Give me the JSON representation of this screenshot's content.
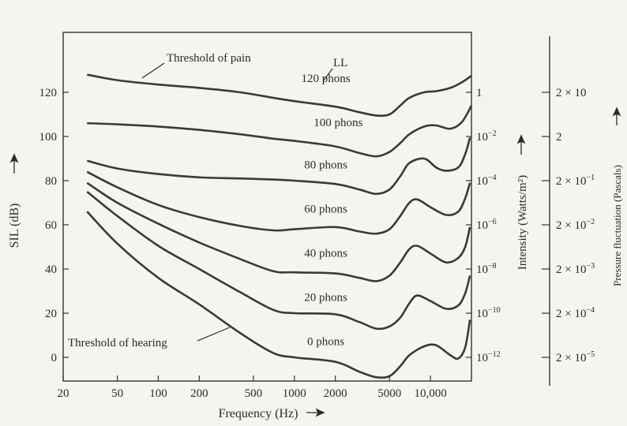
{
  "chart_data": {
    "type": "line",
    "x_scale": "log",
    "xlim": [
      20,
      20000
    ],
    "ylim": [
      -10,
      140
    ],
    "grid": false,
    "xlabel": "Frequency (Hz)",
    "ylabel": "SIL (dB)",
    "x_ticks": [
      {
        "value": 20,
        "label": "20"
      },
      {
        "value": 50,
        "label": "50"
      },
      {
        "value": 100,
        "label": "100"
      },
      {
        "value": 200,
        "label": "200"
      },
      {
        "value": 500,
        "label": "500"
      },
      {
        "value": 1000,
        "label": "1000"
      },
      {
        "value": 2000,
        "label": "2000"
      },
      {
        "value": 5000,
        "label": "5000"
      },
      {
        "value": 10000,
        "label": "10,000"
      }
    ],
    "y_ticks": [
      {
        "value": 0,
        "label": "0"
      },
      {
        "value": 20,
        "label": "20"
      },
      {
        "value": 40,
        "label": "40"
      },
      {
        "value": 60,
        "label": "60"
      },
      {
        "value": 80,
        "label": "80"
      },
      {
        "value": 100,
        "label": "100"
      },
      {
        "value": 120,
        "label": "120"
      }
    ],
    "intensity_axis": {
      "label": "Intensity (Watts/m²)",
      "ticks": [
        {
          "value": 120,
          "base": "1",
          "exp": ""
        },
        {
          "value": 100,
          "base": "10",
          "exp": "−2"
        },
        {
          "value": 80,
          "base": "10",
          "exp": "−4"
        },
        {
          "value": 60,
          "base": "10",
          "exp": "−6"
        },
        {
          "value": 40,
          "base": "10",
          "exp": "−8"
        },
        {
          "value": 20,
          "base": "10",
          "exp": "−10"
        },
        {
          "value": 0,
          "base": "10",
          "exp": "−12"
        }
      ]
    },
    "pressure_axis": {
      "label": "Pressure fluctuation (Pascals)",
      "ticks": [
        {
          "value": 120,
          "base": "2 × 10",
          "exp": ""
        },
        {
          "value": 100,
          "base": "2",
          "exp": ""
        },
        {
          "value": 80,
          "base": "2 × 10",
          "exp": "−1"
        },
        {
          "value": 60,
          "base": "2 × 10",
          "exp": "−2"
        },
        {
          "value": 40,
          "base": "2 × 10",
          "exp": "−3"
        },
        {
          "value": 20,
          "base": "2 × 10",
          "exp": "−4"
        },
        {
          "value": 0,
          "base": "2 × 10",
          "exp": "−5"
        }
      ]
    },
    "series": [
      {
        "name": "120 phons",
        "points": [
          [
            30,
            128
          ],
          [
            50,
            125.5
          ],
          [
            100,
            123.5
          ],
          [
            200,
            122
          ],
          [
            400,
            120
          ],
          [
            700,
            117.5
          ],
          [
            1000,
            116
          ],
          [
            2000,
            113.5
          ],
          [
            3000,
            111
          ],
          [
            4000,
            109.5
          ],
          [
            5000,
            110
          ],
          [
            6000,
            114
          ],
          [
            7000,
            117.5
          ],
          [
            9000,
            120
          ],
          [
            11000,
            120.5
          ],
          [
            14000,
            122
          ],
          [
            17000,
            124.5
          ],
          [
            20000,
            127.5
          ]
        ]
      },
      {
        "name": "100 phons",
        "points": [
          [
            30,
            106
          ],
          [
            50,
            105.5
          ],
          [
            100,
            104.5
          ],
          [
            200,
            103
          ],
          [
            400,
            101
          ],
          [
            700,
            99
          ],
          [
            1000,
            98
          ],
          [
            2000,
            95.5
          ],
          [
            3000,
            92.5
          ],
          [
            4000,
            91
          ],
          [
            5000,
            93
          ],
          [
            6000,
            97
          ],
          [
            7000,
            101
          ],
          [
            9000,
            104.5
          ],
          [
            11000,
            105
          ],
          [
            14000,
            103.5
          ],
          [
            17000,
            106.5
          ],
          [
            20000,
            114
          ]
        ]
      },
      {
        "name": "80 phons",
        "points": [
          [
            30,
            89
          ],
          [
            50,
            85.5
          ],
          [
            100,
            83
          ],
          [
            200,
            81.5
          ],
          [
            400,
            81
          ],
          [
            700,
            80.5
          ],
          [
            1000,
            80
          ],
          [
            2000,
            78.5
          ],
          [
            3000,
            76
          ],
          [
            4000,
            74
          ],
          [
            5000,
            76
          ],
          [
            6000,
            82
          ],
          [
            7000,
            88
          ],
          [
            9000,
            90
          ],
          [
            11000,
            86
          ],
          [
            13000,
            84.5
          ],
          [
            16000,
            86
          ],
          [
            18000,
            92
          ],
          [
            19500,
            99.5
          ]
        ]
      },
      {
        "name": "60 phons",
        "points": [
          [
            30,
            84
          ],
          [
            50,
            77
          ],
          [
            100,
            69
          ],
          [
            200,
            63.5
          ],
          [
            400,
            59.5
          ],
          [
            700,
            57.5
          ],
          [
            1000,
            58
          ],
          [
            2000,
            59
          ],
          [
            3000,
            57
          ],
          [
            4000,
            56
          ],
          [
            5000,
            58
          ],
          [
            6000,
            64
          ],
          [
            7000,
            70
          ],
          [
            8000,
            71.5
          ],
          [
            10000,
            68
          ],
          [
            13000,
            64.5
          ],
          [
            16000,
            66
          ],
          [
            18000,
            72
          ],
          [
            19500,
            79
          ]
        ]
      },
      {
        "name": "40 phons",
        "points": [
          [
            30,
            79
          ],
          [
            50,
            70
          ],
          [
            100,
            60.5
          ],
          [
            200,
            52
          ],
          [
            400,
            44.5
          ],
          [
            700,
            39
          ],
          [
            1000,
            38.5
          ],
          [
            2000,
            38
          ],
          [
            3000,
            36
          ],
          [
            4000,
            34.5
          ],
          [
            5000,
            37
          ],
          [
            6000,
            43
          ],
          [
            7000,
            49
          ],
          [
            8000,
            50.5
          ],
          [
            10000,
            47
          ],
          [
            13000,
            43
          ],
          [
            16000,
            45
          ],
          [
            18000,
            50
          ],
          [
            19500,
            59
          ]
        ]
      },
      {
        "name": "20 phons",
        "points": [
          [
            30,
            75
          ],
          [
            50,
            64
          ],
          [
            100,
            50.5
          ],
          [
            200,
            40
          ],
          [
            400,
            29.5
          ],
          [
            700,
            21.5
          ],
          [
            1000,
            20
          ],
          [
            2000,
            19.5
          ],
          [
            3000,
            16
          ],
          [
            4000,
            13
          ],
          [
            5000,
            14
          ],
          [
            6000,
            18
          ],
          [
            7000,
            24.5
          ],
          [
            8000,
            28
          ],
          [
            10000,
            25.5
          ],
          [
            13000,
            22
          ],
          [
            16000,
            23.5
          ],
          [
            18000,
            29
          ],
          [
            19500,
            37
          ]
        ]
      },
      {
        "name": "0 phons",
        "points": [
          [
            30,
            66
          ],
          [
            50,
            51.5
          ],
          [
            100,
            36
          ],
          [
            200,
            24
          ],
          [
            400,
            11
          ],
          [
            700,
            2
          ],
          [
            1000,
            0
          ],
          [
            2000,
            -2
          ],
          [
            3000,
            -6.5
          ],
          [
            4000,
            -9
          ],
          [
            5000,
            -8.5
          ],
          [
            6000,
            -4
          ],
          [
            7000,
            1
          ],
          [
            9000,
            5
          ],
          [
            11000,
            5.5
          ],
          [
            14000,
            1
          ],
          [
            16000,
            -0.5
          ],
          [
            18000,
            4.5
          ],
          [
            19500,
            17
          ]
        ]
      }
    ],
    "annotations": {
      "pain": "Threshold of pain",
      "hearing": "Threshold of hearing",
      "ll": "LL"
    }
  }
}
